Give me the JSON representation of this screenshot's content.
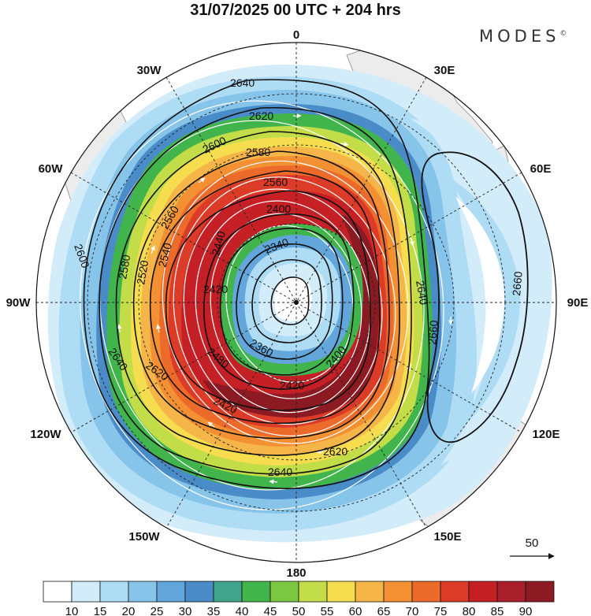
{
  "title": "31/07/2025  00 UTC  + 204 hrs",
  "brand": "MODES",
  "brand_mark": "©",
  "longitude_labels": {
    "n0": "0",
    "n30e": "30E",
    "n60e": "60E",
    "n90e": "90E",
    "n120e": "120E",
    "n150e": "150E",
    "n180": "180",
    "n150w": "150W",
    "n120w": "120W",
    "n90w": "90W",
    "n60w": "60W",
    "n30w": "30W"
  },
  "contour_labels": [
    "2640",
    "2620",
    "2600",
    "2580",
    "2560",
    "2400",
    "2340",
    "2360",
    "2420",
    "2400",
    "2420",
    "2640",
    "2660",
    "2660",
    "2620",
    "2640",
    "2640",
    "2620",
    "2600",
    "2580",
    "2560",
    "2540",
    "2520",
    "2440",
    "2420",
    "2480"
  ],
  "wind_reference": {
    "label": "50"
  },
  "colorbar": {
    "ticks": [
      "10",
      "15",
      "20",
      "25",
      "30",
      "35",
      "40",
      "45",
      "50",
      "55",
      "60",
      "65",
      "70",
      "75",
      "80",
      "85",
      "90"
    ],
    "colors": [
      "#ffffff",
      "#d2ecfa",
      "#aedcf5",
      "#86c4ea",
      "#62a6dc",
      "#4a8cc8",
      "#3fa48a",
      "#42b44c",
      "#7cc843",
      "#c2dd47",
      "#f5dd4f",
      "#f6b548",
      "#f39033",
      "#ec6a2a",
      "#dc3b27",
      "#c42026",
      "#a81e2a",
      "#8c1a22"
    ]
  }
}
